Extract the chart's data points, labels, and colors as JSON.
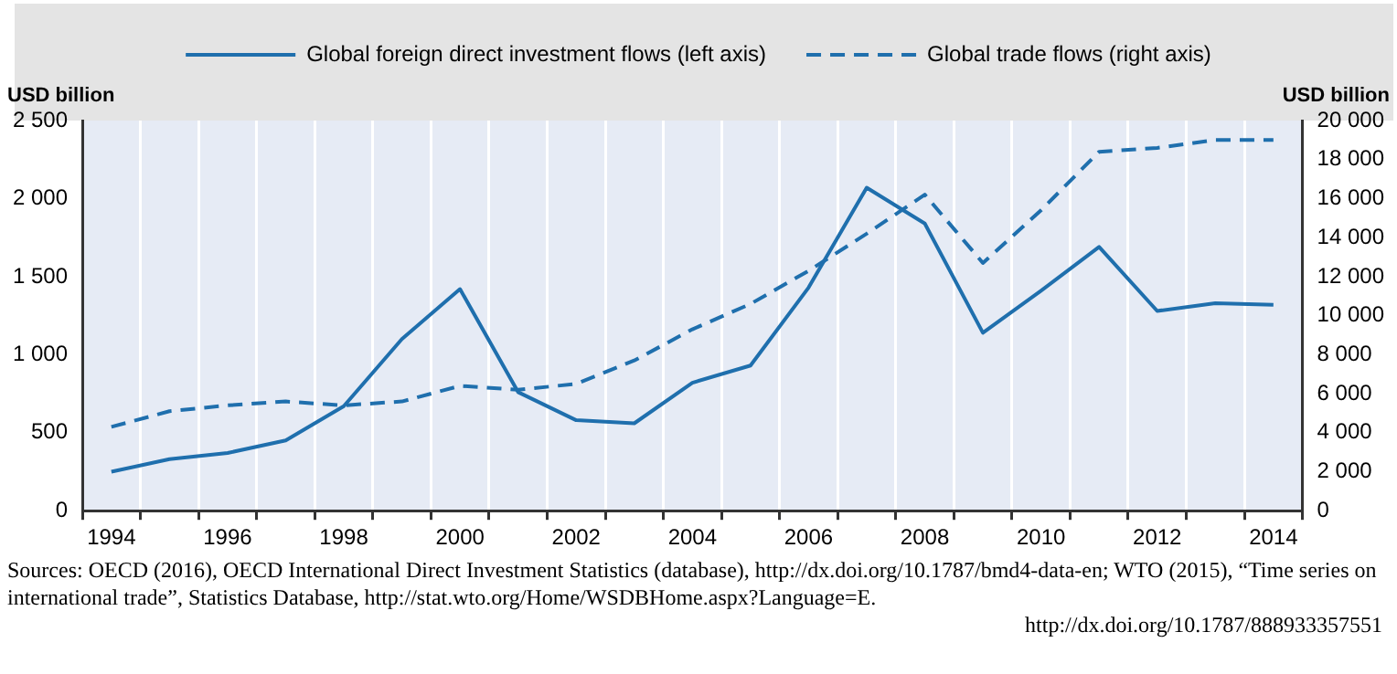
{
  "chart_data": {
    "type": "line",
    "categories": [
      "1994",
      null,
      "1996",
      null,
      "1998",
      null,
      "2000",
      null,
      "2002",
      null,
      "2004",
      null,
      "2006",
      null,
      "2008",
      null,
      "2010",
      null,
      "2012",
      null,
      "2014"
    ],
    "series": [
      {
        "name": "Global foreign direct investment flows (left axis)",
        "color": "#1f6fad",
        "line_style": "solid",
        "values": [
          250,
          330,
          370,
          450,
          670,
          1100,
          1420,
          760,
          580,
          560,
          820,
          930,
          1430,
          2070,
          1840,
          1140,
          1410,
          1690,
          1280,
          1330,
          1320
        ]
      },
      {
        "name": "Global trade flows (right axis)",
        "color": "#1f6fad",
        "line_style": "dashed",
        "axis": "y2",
        "values": [
          4300,
          5100,
          5400,
          5600,
          5400,
          5600,
          6400,
          6200,
          6500,
          7700,
          9300,
          10600,
          12300,
          14200,
          16200,
          12700,
          15400,
          18400,
          18600,
          19000,
          19000
        ]
      }
    ],
    "ylabel": "USD billion",
    "y2label": "USD billion",
    "ylim": [
      0,
      2500
    ],
    "yticks": [
      0,
      {
        "value": 500,
        "label": "500"
      },
      {
        "value": 1000,
        "label": "1 000"
      },
      {
        "value": 1500,
        "label": "1 500"
      },
      {
        "value": 2000,
        "label": "2 000"
      },
      {
        "value": 2500,
        "label": "2 500"
      }
    ],
    "y2lim": [
      0,
      20000
    ],
    "y2ticks": [
      0,
      {
        "value": 2000,
        "label": "2 000"
      },
      {
        "value": 4000,
        "label": "4 000"
      },
      {
        "value": 6000,
        "label": "6 000"
      },
      {
        "value": 8000,
        "label": "8 000"
      },
      {
        "value": 10000,
        "label": "10 000"
      },
      {
        "value": 12000,
        "label": "12 000"
      },
      {
        "value": 14000,
        "label": "14 000"
      },
      {
        "value": 16000,
        "label": "16 000"
      },
      {
        "value": 18000,
        "label": "18 000"
      },
      {
        "value": 20000,
        "label": "20 000"
      }
    ],
    "grid": "x",
    "legend": "top",
    "marker": "none",
    "annotations": [
      "Sources: OECD (2016), OECD International Direct Investment Statistics (database), http://dx.doi.org/10.1787/bmd4-data-en; WTO (2015), “Time series on international trade”, Statistics Database, http://stat.wto.org/Home/WSDBHome.aspx?Language=E.",
      "http://dx.doi.org/10.1787/888933357551"
    ]
  }
}
